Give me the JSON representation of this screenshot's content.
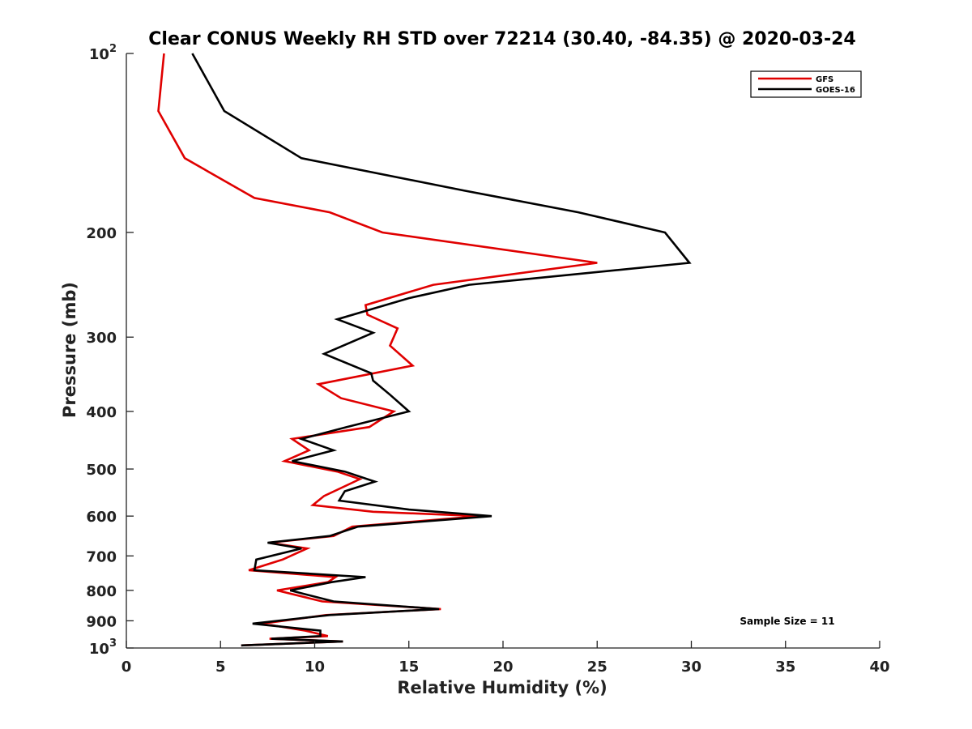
{
  "chart_data": {
    "type": "line",
    "title": "Clear CONUS Weekly RH STD over 72214 (30.40, -84.35) @ 2020-03-24",
    "xlabel": "Relative Humidity (%)",
    "ylabel": "Pressure (mb)",
    "xlim": [
      0,
      40
    ],
    "ylim": [
      100,
      1000
    ],
    "yscale": "log",
    "y_reversed": true,
    "x_ticks": [
      0,
      5,
      10,
      15,
      20,
      25,
      30,
      35,
      40
    ],
    "x_tick_labels": [
      "0",
      "5",
      "10",
      "15",
      "20",
      "25",
      "30",
      "35",
      "40"
    ],
    "y_ticks": [
      {
        "value": 100,
        "base": "10",
        "exp": "2"
      },
      {
        "value": 200,
        "label": "200"
      },
      {
        "value": 300,
        "label": "300"
      },
      {
        "value": 400,
        "label": "400"
      },
      {
        "value": 500,
        "label": "500"
      },
      {
        "value": 600,
        "label": "600"
      },
      {
        "value": 700,
        "label": "700"
      },
      {
        "value": 800,
        "label": "800"
      },
      {
        "value": 900,
        "label": "900"
      },
      {
        "value": 1000,
        "base": "10",
        "exp": "3"
      }
    ],
    "legend_position": "top-right",
    "annotation": "Sample Size = 11",
    "series": [
      {
        "name": "GFS",
        "color": "#e00000",
        "points": [
          [
            2.0,
            100
          ],
          [
            1.7,
            125
          ],
          [
            3.1,
            150
          ],
          [
            6.8,
            175
          ],
          [
            10.8,
            185
          ],
          [
            13.6,
            200
          ],
          [
            25.0,
            225
          ],
          [
            16.3,
            245
          ],
          [
            12.7,
            265
          ],
          [
            12.8,
            275
          ],
          [
            14.4,
            290
          ],
          [
            14.0,
            310
          ],
          [
            15.2,
            335
          ],
          [
            10.2,
            360
          ],
          [
            11.4,
            380
          ],
          [
            14.2,
            400
          ],
          [
            12.9,
            425
          ],
          [
            8.8,
            445
          ],
          [
            9.7,
            465
          ],
          [
            8.4,
            485
          ],
          [
            11.2,
            505
          ],
          [
            12.4,
            520
          ],
          [
            10.5,
            555
          ],
          [
            9.9,
            575
          ],
          [
            13.1,
            590
          ],
          [
            18.8,
            600
          ],
          [
            12.0,
            625
          ],
          [
            11.0,
            648
          ],
          [
            7.6,
            665
          ],
          [
            9.6,
            680
          ],
          [
            8.3,
            710
          ],
          [
            6.5,
            740
          ],
          [
            11.1,
            760
          ],
          [
            10.7,
            775
          ],
          [
            8.0,
            800
          ],
          [
            10.4,
            835
          ],
          [
            16.7,
            860
          ],
          [
            10.6,
            880
          ],
          [
            7.2,
            910
          ],
          [
            9.5,
            935
          ],
          [
            10.7,
            955
          ],
          [
            7.6,
            965
          ],
          [
            11.5,
            975
          ],
          [
            6.1,
            990
          ]
        ]
      },
      {
        "name": "GOES-16",
        "color": "#000000",
        "points": [
          [
            3.5,
            100
          ],
          [
            5.2,
            125
          ],
          [
            9.3,
            150
          ],
          [
            17.9,
            170
          ],
          [
            24.0,
            185
          ],
          [
            28.6,
            200
          ],
          [
            29.9,
            225
          ],
          [
            18.2,
            245
          ],
          [
            15.0,
            258
          ],
          [
            11.2,
            280
          ],
          [
            13.1,
            295
          ],
          [
            10.5,
            320
          ],
          [
            13.0,
            345
          ],
          [
            13.1,
            355
          ],
          [
            14.0,
            375
          ],
          [
            15.0,
            400
          ],
          [
            11.7,
            425
          ],
          [
            9.3,
            445
          ],
          [
            11.0,
            465
          ],
          [
            8.8,
            485
          ],
          [
            11.6,
            505
          ],
          [
            13.2,
            525
          ],
          [
            11.6,
            545
          ],
          [
            11.3,
            565
          ],
          [
            15.0,
            585
          ],
          [
            19.4,
            600
          ],
          [
            12.3,
            625
          ],
          [
            10.8,
            648
          ],
          [
            7.5,
            665
          ],
          [
            9.3,
            680
          ],
          [
            6.9,
            710
          ],
          [
            6.8,
            740
          ],
          [
            12.7,
            760
          ],
          [
            10.9,
            775
          ],
          [
            8.7,
            800
          ],
          [
            11.0,
            835
          ],
          [
            16.6,
            860
          ],
          [
            10.8,
            880
          ],
          [
            6.7,
            910
          ],
          [
            10.3,
            935
          ],
          [
            10.3,
            955
          ],
          [
            7.7,
            965
          ],
          [
            11.5,
            975
          ],
          [
            6.1,
            990
          ]
        ]
      }
    ]
  }
}
